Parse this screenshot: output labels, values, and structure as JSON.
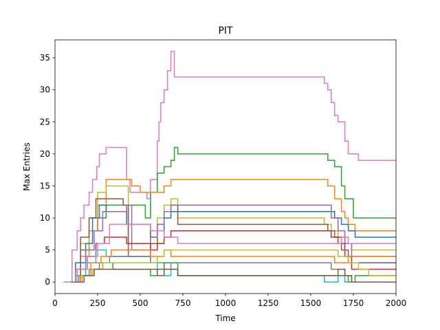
{
  "chart_data": {
    "type": "line",
    "title": "PIT",
    "xlabel": "Time",
    "ylabel": "Max Entries",
    "xlim": [
      0,
      2000
    ],
    "ylim": [
      -1.8,
      37.8
    ],
    "xticks": [
      0,
      250,
      500,
      750,
      1000,
      1250,
      1500,
      1750,
      2000
    ],
    "yticks": [
      0,
      5,
      10,
      15,
      20,
      25,
      30,
      35
    ],
    "grid": false,
    "legend": "none",
    "step": true,
    "series": [
      {
        "color": "#e377c2",
        "x": [
          50,
          100,
          130,
          150,
          170,
          200,
          220,
          245,
          260,
          300,
          350,
          420,
          440,
          540,
          560,
          600,
          610,
          620,
          640,
          660,
          680,
          700,
          720,
          1580,
          1600,
          1620,
          1640,
          1660,
          1700,
          1720,
          1780,
          1800,
          2000
        ],
        "y": [
          0,
          5,
          8,
          10,
          12,
          14,
          16,
          18,
          20,
          21,
          21,
          16,
          14,
          13,
          16,
          22,
          25,
          28,
          30,
          33,
          36,
          32,
          32,
          31,
          30,
          28,
          26,
          25,
          22,
          20,
          19,
          19,
          19
        ]
      },
      {
        "color": "#2ca02c",
        "x": [
          60,
          150,
          200,
          250,
          300,
          500,
          530,
          560,
          600,
          640,
          680,
          700,
          720,
          1580,
          1600,
          1640,
          1680,
          1700,
          1750,
          2000
        ],
        "y": [
          0,
          5,
          8,
          10,
          12,
          12,
          10,
          14,
          17,
          18,
          19,
          21,
          20,
          20,
          19,
          18,
          15,
          13,
          10,
          10
        ]
      },
      {
        "color": "#ff7f0e",
        "x": [
          60,
          150,
          200,
          250,
          300,
          450,
          500,
          560,
          600,
          640,
          680,
          720,
          1580,
          1600,
          1640,
          1680,
          1700,
          1720,
          1760,
          2000
        ],
        "y": [
          0,
          4,
          8,
          12,
          16,
          15,
          14,
          14,
          14,
          15,
          16,
          16,
          16,
          15,
          13,
          11,
          10,
          9,
          8,
          8
        ]
      },
      {
        "color": "#bcbd22",
        "x": [
          70,
          150,
          200,
          250,
          300,
          400,
          430,
          560,
          600,
          640,
          680,
          720,
          1550,
          1580,
          1620,
          1660,
          1700,
          1740,
          2000
        ],
        "y": [
          0,
          6,
          10,
          14,
          15,
          15,
          6,
          8,
          10,
          12,
          13,
          10,
          10,
          9,
          8,
          7,
          6,
          5,
          5
        ]
      },
      {
        "color": "#8c564b",
        "x": [
          80,
          150,
          200,
          240,
          280,
          400,
          430,
          560,
          600,
          640,
          680,
          720,
          1560,
          1600,
          1640,
          1680,
          1720,
          2000
        ],
        "y": [
          0,
          7,
          10,
          13,
          13,
          12,
          4,
          6,
          9,
          11,
          12,
          9,
          9,
          8,
          7,
          5,
          3,
          3
        ]
      },
      {
        "color": "#1f77b4",
        "x": [
          60,
          120,
          180,
          220,
          260,
          300,
          420,
          560,
          600,
          640,
          680,
          720,
          1600,
          1640,
          1680,
          1720,
          1760,
          1800,
          2000
        ],
        "y": [
          0,
          3,
          6,
          10,
          12,
          11,
          9,
          7,
          8,
          10,
          11,
          11,
          11,
          10,
          9,
          8,
          7,
          7,
          7
        ]
      },
      {
        "color": "#9467bd",
        "x": [
          60,
          120,
          180,
          230,
          280,
          420,
          450,
          560,
          600,
          640,
          680,
          720,
          1580,
          1620,
          1660,
          1700,
          1740,
          2000
        ],
        "y": [
          0,
          2,
          5,
          8,
          11,
          12,
          5,
          7,
          9,
          11,
          12,
          12,
          12,
          10,
          8,
          6,
          4,
          4
        ]
      },
      {
        "color": "#d62728",
        "x": [
          70,
          130,
          190,
          240,
          290,
          420,
          560,
          600,
          640,
          680,
          720,
          1580,
          1620,
          1660,
          1700,
          1740,
          2000
        ],
        "y": [
          0,
          2,
          4,
          6,
          7,
          6,
          5,
          6,
          7,
          8,
          8,
          8,
          7,
          6,
          4,
          2,
          2
        ]
      },
      {
        "color": "#17becf",
        "x": [
          60,
          120,
          180,
          240,
          300,
          560,
          600,
          640,
          680,
          720,
          1580,
          1620,
          1660,
          1700,
          2000
        ],
        "y": [
          0,
          1,
          3,
          5,
          4,
          3,
          2,
          1,
          2,
          1,
          0,
          0,
          1,
          0,
          0
        ]
      },
      {
        "color": "#7f7f7f",
        "x": [
          80,
          140,
          200,
          260,
          320,
          560,
          600,
          640,
          680,
          720,
          1580,
          1620,
          1660,
          1700,
          1740,
          2000
        ],
        "y": [
          0,
          1,
          2,
          3,
          4,
          3,
          3,
          2,
          3,
          3,
          3,
          2,
          2,
          1,
          0,
          0
        ]
      },
      {
        "color": "#e377c2",
        "x": [
          70,
          130,
          190,
          250,
          320,
          560,
          600,
          640,
          680,
          720,
          1600,
          1640,
          1680,
          1720,
          1780,
          1820,
          2000
        ],
        "y": [
          0,
          2,
          4,
          6,
          9,
          8,
          8,
          7,
          7,
          6,
          6,
          6,
          7,
          6,
          6,
          6,
          6
        ]
      },
      {
        "color": "#ff7f0e",
        "x": [
          90,
          150,
          210,
          270,
          330,
          560,
          600,
          640,
          680,
          720,
          1600,
          1640,
          1680,
          1720,
          1760,
          2000
        ],
        "y": [
          0,
          1,
          3,
          4,
          5,
          4,
          4,
          5,
          4,
          4,
          4,
          3,
          3,
          4,
          4,
          4
        ]
      },
      {
        "color": "#2ca02c",
        "x": [
          90,
          160,
          220,
          280,
          340,
          560,
          600,
          640,
          680,
          720,
          1600,
          1640,
          1680,
          1720,
          1760,
          2000
        ],
        "y": [
          0,
          1,
          2,
          3,
          2,
          1,
          2,
          3,
          3,
          1,
          1,
          1,
          1,
          0,
          1,
          1
        ]
      },
      {
        "color": "#bcbd22",
        "x": [
          100,
          160,
          220,
          280,
          560,
          600,
          640,
          680,
          720,
          1600,
          1660,
          1720,
          1780,
          1840,
          2000
        ],
        "y": [
          0,
          1,
          2,
          3,
          3,
          4,
          5,
          5,
          5,
          5,
          4,
          3,
          2,
          1,
          1
        ]
      },
      {
        "color": "#8c564b",
        "x": [
          100,
          170,
          230,
          290,
          560,
          600,
          640,
          680,
          720,
          1600,
          1660,
          1700,
          1740,
          2000
        ],
        "y": [
          0,
          1,
          2,
          2,
          2,
          1,
          2,
          2,
          1,
          1,
          2,
          1,
          0,
          0
        ]
      }
    ]
  }
}
